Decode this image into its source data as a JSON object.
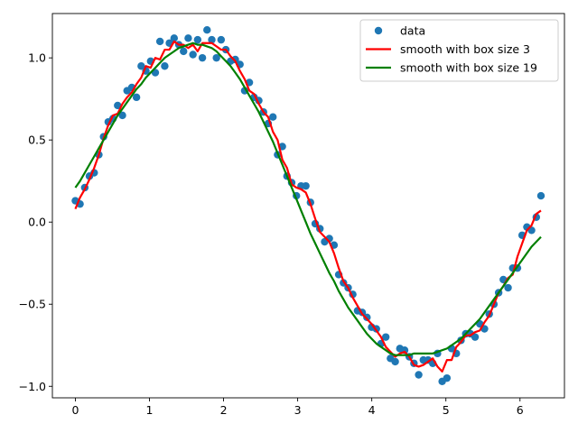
{
  "chart_data": {
    "type": "scatter",
    "title": "",
    "xlabel": "",
    "ylabel": "",
    "xlim": [
      -0.31,
      6.6
    ],
    "ylim": [
      -1.07,
      1.27
    ],
    "xticks": [
      0,
      1,
      2,
      3,
      4,
      5,
      6
    ],
    "yticks": [
      -1.0,
      -0.5,
      0.0,
      0.5,
      1.0
    ],
    "xtick_labels": [
      "0",
      "1",
      "2",
      "3",
      "4",
      "5",
      "6"
    ],
    "ytick_labels": [
      "−1.0",
      "−0.5",
      "0.0",
      "0.5",
      "1.0"
    ],
    "grid": false,
    "legend_position": "top-right",
    "series": [
      {
        "name": "data",
        "kind": "scatter",
        "color": "#1f77b4",
        "x": [
          0.0,
          0.063,
          0.127,
          0.19,
          0.254,
          0.317,
          0.381,
          0.444,
          0.508,
          0.571,
          0.635,
          0.698,
          0.762,
          0.825,
          0.889,
          0.952,
          1.016,
          1.079,
          1.142,
          1.206,
          1.269,
          1.333,
          1.396,
          1.46,
          1.523,
          1.587,
          1.65,
          1.714,
          1.777,
          1.841,
          1.904,
          1.967,
          2.031,
          2.094,
          2.158,
          2.221,
          2.285,
          2.348,
          2.412,
          2.475,
          2.539,
          2.602,
          2.666,
          2.729,
          2.793,
          2.856,
          2.919,
          2.983,
          3.046,
          3.11,
          3.173,
          3.237,
          3.3,
          3.364,
          3.427,
          3.491,
          3.554,
          3.618,
          3.681,
          3.744,
          3.808,
          3.871,
          3.935,
          3.998,
          4.062,
          4.125,
          4.189,
          4.252,
          4.316,
          4.379,
          4.443,
          4.506,
          4.569,
          4.633,
          4.696,
          4.76,
          4.823,
          4.887,
          4.95,
          5.014,
          5.077,
          5.141,
          5.204,
          5.268,
          5.331,
          5.394,
          5.458,
          5.521,
          5.585,
          5.648,
          5.712,
          5.775,
          5.839,
          5.902,
          5.966,
          6.029,
          6.093,
          6.156,
          6.22,
          6.283
        ],
        "y": [
          0.13,
          0.11,
          0.21,
          0.28,
          0.3,
          0.41,
          0.52,
          0.61,
          0.63,
          0.71,
          0.65,
          0.8,
          0.82,
          0.76,
          0.95,
          0.92,
          0.98,
          0.91,
          1.1,
          0.95,
          1.09,
          1.12,
          1.08,
          1.04,
          1.12,
          1.02,
          1.11,
          1.0,
          1.17,
          1.11,
          1.0,
          1.11,
          1.05,
          0.98,
          0.99,
          0.96,
          0.8,
          0.85,
          0.76,
          0.74,
          0.67,
          0.6,
          0.64,
          0.41,
          0.46,
          0.28,
          0.24,
          0.16,
          0.22,
          0.22,
          0.12,
          -0.01,
          -0.04,
          -0.12,
          -0.1,
          -0.14,
          -0.32,
          -0.37,
          -0.4,
          -0.44,
          -0.54,
          -0.55,
          -0.58,
          -0.64,
          -0.65,
          -0.74,
          -0.7,
          -0.83,
          -0.85,
          -0.77,
          -0.78,
          -0.82,
          -0.86,
          -0.93,
          -0.84,
          -0.84,
          -0.86,
          -0.8,
          -0.97,
          -0.95,
          -0.77,
          -0.8,
          -0.72,
          -0.68,
          -0.68,
          -0.7,
          -0.62,
          -0.65,
          -0.56,
          -0.5,
          -0.43,
          -0.35,
          -0.4,
          -0.28,
          -0.28,
          -0.08,
          -0.03,
          -0.05,
          0.03,
          0.16
        ]
      },
      {
        "name": "smooth with box size 3",
        "kind": "line",
        "color": "#ff0000",
        "x": [
          0.0,
          0.063,
          0.127,
          0.19,
          0.254,
          0.317,
          0.381,
          0.444,
          0.508,
          0.571,
          0.635,
          0.698,
          0.762,
          0.825,
          0.889,
          0.952,
          1.016,
          1.079,
          1.142,
          1.206,
          1.269,
          1.333,
          1.396,
          1.46,
          1.523,
          1.587,
          1.65,
          1.714,
          1.777,
          1.841,
          1.904,
          1.967,
          2.031,
          2.094,
          2.158,
          2.221,
          2.285,
          2.348,
          2.412,
          2.475,
          2.539,
          2.602,
          2.666,
          2.729,
          2.793,
          2.856,
          2.919,
          2.983,
          3.046,
          3.11,
          3.173,
          3.237,
          3.3,
          3.364,
          3.427,
          3.491,
          3.554,
          3.618,
          3.681,
          3.744,
          3.808,
          3.871,
          3.935,
          3.998,
          4.062,
          4.125,
          4.189,
          4.252,
          4.316,
          4.379,
          4.443,
          4.506,
          4.569,
          4.633,
          4.696,
          4.76,
          4.823,
          4.887,
          4.95,
          5.014,
          5.077,
          5.141,
          5.204,
          5.268,
          5.331,
          5.394,
          5.458,
          5.521,
          5.585,
          5.648,
          5.712,
          5.775,
          5.839,
          5.902,
          5.966,
          6.029,
          6.093,
          6.156,
          6.22,
          6.283
        ],
        "y": [
          0.08,
          0.15,
          0.2,
          0.26,
          0.33,
          0.41,
          0.51,
          0.59,
          0.65,
          0.66,
          0.72,
          0.76,
          0.79,
          0.84,
          0.88,
          0.95,
          0.94,
          1.0,
          0.99,
          1.05,
          1.05,
          1.1,
          1.08,
          1.08,
          1.06,
          1.08,
          1.04,
          1.09,
          1.09,
          1.09,
          1.07,
          1.05,
          1.05,
          1.01,
          0.98,
          0.92,
          0.87,
          0.8,
          0.78,
          0.72,
          0.67,
          0.64,
          0.55,
          0.5,
          0.38,
          0.33,
          0.23,
          0.21,
          0.2,
          0.18,
          0.11,
          0.02,
          -0.06,
          -0.09,
          -0.12,
          -0.19,
          -0.28,
          -0.36,
          -0.4,
          -0.46,
          -0.51,
          -0.56,
          -0.59,
          -0.62,
          -0.66,
          -0.7,
          -0.76,
          -0.79,
          -0.82,
          -0.8,
          -0.79,
          -0.82,
          -0.87,
          -0.88,
          -0.87,
          -0.85,
          -0.83,
          -0.88,
          -0.91,
          -0.84,
          -0.84,
          -0.76,
          -0.73,
          -0.69,
          -0.69,
          -0.67,
          -0.66,
          -0.61,
          -0.57,
          -0.5,
          -0.43,
          -0.39,
          -0.34,
          -0.32,
          -0.21,
          -0.13,
          -0.05,
          -0.02,
          0.05,
          0.07
        ]
      },
      {
        "name": "smooth with box size 19",
        "kind": "line",
        "color": "#008000",
        "x": [
          0.0,
          0.063,
          0.127,
          0.19,
          0.254,
          0.317,
          0.381,
          0.444,
          0.508,
          0.571,
          0.635,
          0.698,
          0.762,
          0.825,
          0.889,
          0.952,
          1.016,
          1.079,
          1.142,
          1.206,
          1.269,
          1.333,
          1.396,
          1.46,
          1.523,
          1.587,
          1.65,
          1.714,
          1.777,
          1.841,
          1.904,
          1.967,
          2.031,
          2.094,
          2.158,
          2.221,
          2.285,
          2.348,
          2.412,
          2.475,
          2.539,
          2.602,
          2.666,
          2.729,
          2.793,
          2.856,
          2.919,
          2.983,
          3.046,
          3.11,
          3.173,
          3.237,
          3.3,
          3.364,
          3.427,
          3.491,
          3.554,
          3.618,
          3.681,
          3.744,
          3.808,
          3.871,
          3.935,
          3.998,
          4.062,
          4.125,
          4.189,
          4.252,
          4.316,
          4.379,
          4.443,
          4.506,
          4.569,
          4.633,
          4.696,
          4.76,
          4.823,
          4.887,
          4.95,
          5.014,
          5.077,
          5.141,
          5.204,
          5.268,
          5.331,
          5.394,
          5.458,
          5.521,
          5.585,
          5.648,
          5.712,
          5.775,
          5.839,
          5.902,
          5.966,
          6.029,
          6.093,
          6.156,
          6.22,
          6.283
        ],
        "y": [
          0.21,
          0.25,
          0.3,
          0.35,
          0.4,
          0.45,
          0.5,
          0.55,
          0.6,
          0.65,
          0.69,
          0.73,
          0.77,
          0.81,
          0.84,
          0.88,
          0.91,
          0.94,
          0.97,
          1.0,
          1.02,
          1.04,
          1.06,
          1.07,
          1.08,
          1.09,
          1.08,
          1.08,
          1.07,
          1.06,
          1.04,
          1.01,
          0.98,
          0.95,
          0.91,
          0.87,
          0.82,
          0.77,
          0.72,
          0.67,
          0.61,
          0.55,
          0.49,
          0.42,
          0.35,
          0.28,
          0.21,
          0.14,
          0.07,
          0.0,
          -0.07,
          -0.13,
          -0.19,
          -0.25,
          -0.31,
          -0.36,
          -0.42,
          -0.47,
          -0.52,
          -0.56,
          -0.6,
          -0.64,
          -0.68,
          -0.71,
          -0.74,
          -0.76,
          -0.78,
          -0.8,
          -0.81,
          -0.81,
          -0.81,
          -0.81,
          -0.8,
          -0.8,
          -0.8,
          -0.8,
          -0.8,
          -0.79,
          -0.78,
          -0.77,
          -0.75,
          -0.73,
          -0.71,
          -0.68,
          -0.65,
          -0.62,
          -0.59,
          -0.55,
          -0.51,
          -0.47,
          -0.43,
          -0.39,
          -0.35,
          -0.31,
          -0.27,
          -0.23,
          -0.19,
          -0.15,
          -0.12,
          -0.09
        ]
      }
    ]
  }
}
